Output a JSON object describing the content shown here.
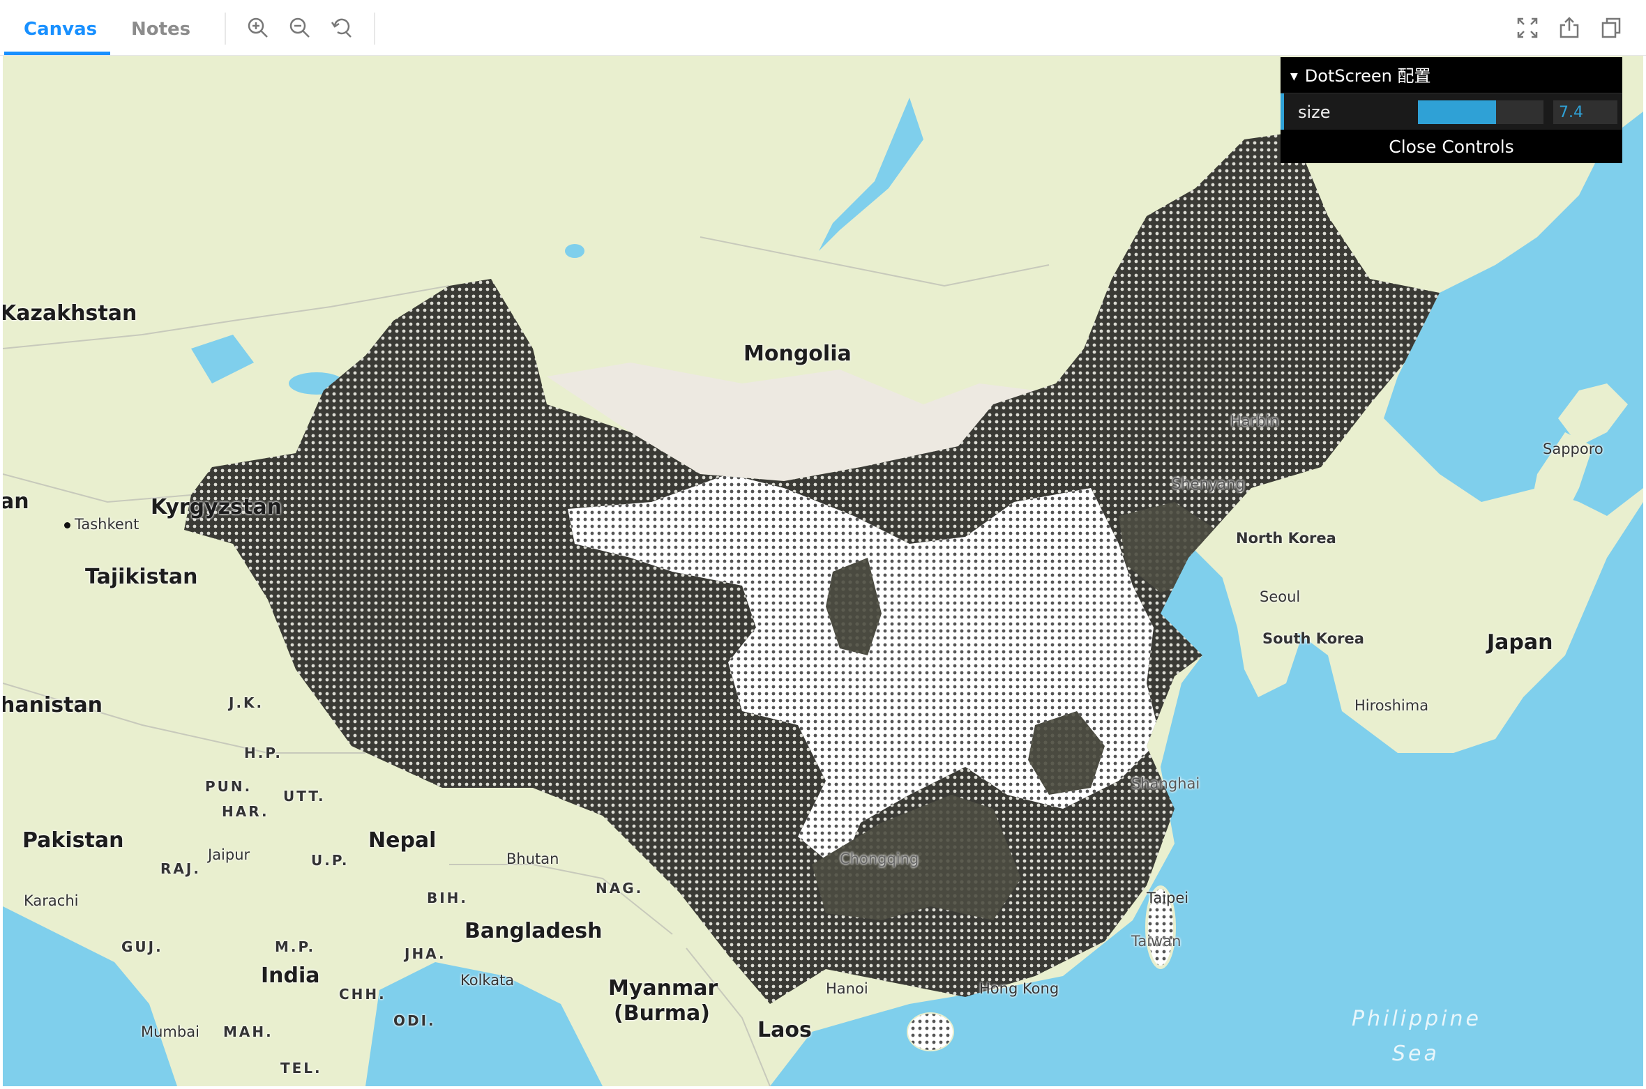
{
  "toolbar": {
    "tabs": [
      {
        "label": "Canvas",
        "active": true
      },
      {
        "label": "Notes",
        "active": false
      }
    ],
    "icons": [
      "zoom-in-icon",
      "zoom-out-icon",
      "reset-icon",
      "fullscreen-icon",
      "export-icon",
      "copy-icon"
    ],
    "accent_color": "#1890ff"
  },
  "controls": {
    "title": "DotScreen 配置",
    "param_label": "size",
    "param_value": "7.4",
    "param_fill_fraction": 0.62,
    "close_label": "Close Controls",
    "accent_color": "#2fa1d6"
  },
  "map": {
    "colors": {
      "water": "#7fcfec",
      "land": "#e9efcf",
      "desert": "#ede9e1",
      "dot_dark": "#3a3a35",
      "dot_light": "#ffffff"
    },
    "countries": [
      "Kazakhstan",
      "Mongolia",
      "Kyrgyzstan",
      "Tajikistan",
      "an",
      "hanistan",
      "Pakistan",
      "Nepal",
      "Bhutan",
      "Bangladesh",
      "India",
      "Myanmar",
      "(Burma)",
      "Laos",
      "North Korea",
      "South Korea",
      "Japan"
    ],
    "states": [
      "J.K.",
      "H.P.",
      "PUN.",
      "UTT.",
      "HAR.",
      "RAJ.",
      "U.P.",
      "BIH.",
      "NAG.",
      "GUJ.",
      "M.P.",
      "JHA.",
      "CHH.",
      "ODI.",
      "MAH.",
      "TEL."
    ],
    "cities": [
      "Tashkent",
      "Jaipur",
      "Karachi",
      "Kolkata",
      "Mumbai",
      "Hanoi",
      "Hong Kong",
      "Taipei",
      "Taiwan",
      "Shanghai",
      "Shenyang",
      "Harbin",
      "Seoul",
      "Sapporo",
      "Hiroshima",
      "Chongqing"
    ],
    "seas": [
      "Philippine",
      "Sea"
    ]
  }
}
